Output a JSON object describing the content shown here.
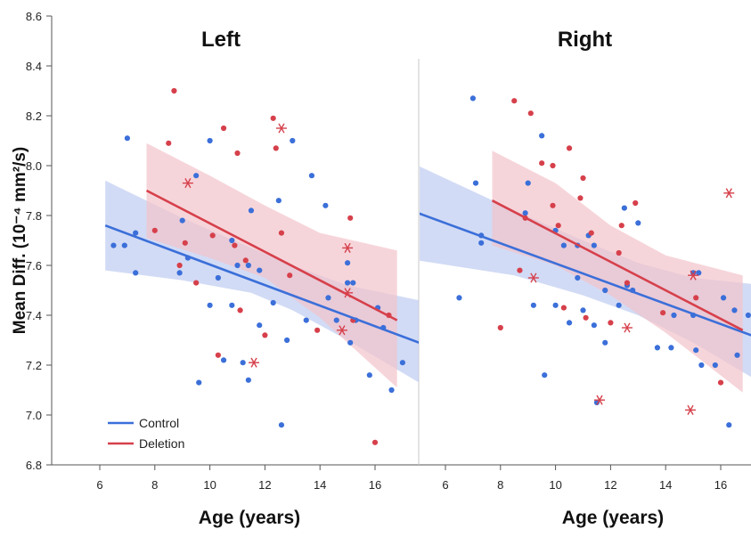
{
  "chart_data": {
    "type": "scatter",
    "ylabel": "Mean Diff. (10⁻⁴ mm²/s)",
    "y_tick_labels": [
      "6.8",
      "7.0",
      "7.2",
      "7.4",
      "7.6",
      "7.8",
      "8.0",
      "8.2",
      "8.4",
      "8.6"
    ],
    "ylim": [
      6.8,
      8.6
    ],
    "x_tick_labels": [
      "6",
      "8",
      "10",
      "12",
      "14",
      "16"
    ],
    "legend": {
      "position": "bottom-left",
      "entries": [
        {
          "label": "Control",
          "color": "#3b6fd9"
        },
        {
          "label": "Deletion",
          "color": "#d6404b"
        }
      ]
    },
    "colors": {
      "control": "#3b6fd9",
      "deletion": "#d6404b",
      "control_band": "#c3cff2",
      "deletion_band": "#f2c3ca"
    },
    "grid": false,
    "panels": [
      {
        "title": "Left",
        "xlabel": "Age (years)",
        "xlim": [
          5,
          17.6
        ],
        "series": [
          {
            "name": "Control",
            "marker": "dot",
            "fit": {
              "x_start": 6.2,
              "y_start": 7.76,
              "x_end": 17.6,
              "y_end": 7.29
            },
            "band": {
              "upper": [
                [
                  6.2,
                  7.94
                ],
                [
                  9,
                  7.79
                ],
                [
                  11.5,
                  7.67
                ],
                [
                  13,
                  7.6
                ],
                [
                  15,
                  7.52
                ],
                [
                  17.6,
                  7.46
                ]
              ],
              "lower": [
                [
                  6.2,
                  7.58
                ],
                [
                  9,
                  7.54
                ],
                [
                  11.5,
                  7.49
                ],
                [
                  13,
                  7.42
                ],
                [
                  15,
                  7.3
                ],
                [
                  17.6,
                  7.13
                ]
              ]
            },
            "points": [
              [
                6.5,
                7.68
              ],
              [
                6.9,
                7.68
              ],
              [
                7.0,
                8.11
              ],
              [
                7.3,
                7.73
              ],
              [
                7.3,
                7.57
              ],
              [
                8.9,
                7.57
              ],
              [
                9.0,
                7.78
              ],
              [
                9.2,
                7.63
              ],
              [
                9.5,
                7.96
              ],
              [
                9.6,
                7.13
              ],
              [
                10.0,
                8.1
              ],
              [
                10.0,
                7.44
              ],
              [
                10.3,
                7.55
              ],
              [
                10.5,
                7.22
              ],
              [
                10.8,
                7.7
              ],
              [
                10.8,
                7.44
              ],
              [
                11.0,
                7.6
              ],
              [
                11.2,
                7.21
              ],
              [
                11.4,
                7.6
              ],
              [
                11.4,
                7.14
              ],
              [
                11.5,
                7.82
              ],
              [
                11.8,
                7.58
              ],
              [
                11.8,
                7.36
              ],
              [
                12.3,
                7.45
              ],
              [
                12.5,
                7.86
              ],
              [
                12.6,
                6.96
              ],
              [
                12.8,
                7.3
              ],
              [
                13.0,
                8.1
              ],
              [
                13.5,
                7.38
              ],
              [
                13.7,
                7.96
              ],
              [
                14.2,
                7.84
              ],
              [
                14.3,
                7.47
              ],
              [
                14.6,
                7.38
              ],
              [
                15.0,
                7.61
              ],
              [
                15.0,
                7.53
              ],
              [
                15.1,
                7.29
              ],
              [
                15.2,
                7.53
              ],
              [
                15.3,
                7.38
              ],
              [
                15.8,
                7.16
              ],
              [
                16.1,
                7.43
              ],
              [
                16.3,
                7.35
              ],
              [
                16.6,
                7.1
              ],
              [
                17.0,
                7.21
              ]
            ]
          },
          {
            "name": "Deletion",
            "marker": "dot-and-asterisk",
            "fit": {
              "x_start": 7.7,
              "y_start": 7.9,
              "x_end": 16.8,
              "y_end": 7.38
            },
            "band": {
              "upper": [
                [
                  7.7,
                  8.09
                ],
                [
                  10,
                  7.96
                ],
                [
                  12,
                  7.84
                ],
                [
                  14,
                  7.73
                ],
                [
                  16.8,
                  7.66
                ]
              ],
              "lower": [
                [
                  7.7,
                  7.71
                ],
                [
                  10,
                  7.63
                ],
                [
                  12,
                  7.55
                ],
                [
                  14,
                  7.39
                ],
                [
                  16.8,
                  7.11
                ]
              ]
            },
            "points": [
              [
                8.0,
                7.74
              ],
              [
                8.5,
                8.09
              ],
              [
                8.7,
                8.3
              ],
              [
                8.9,
                7.6
              ],
              [
                9.1,
                7.69
              ],
              [
                9.5,
                7.53
              ],
              [
                10.1,
                7.72
              ],
              [
                10.3,
                7.24
              ],
              [
                10.5,
                8.15
              ],
              [
                10.9,
                7.68
              ],
              [
                11.0,
                8.05
              ],
              [
                11.1,
                7.42
              ],
              [
                11.3,
                7.62
              ],
              [
                12.0,
                7.32
              ],
              [
                12.3,
                8.19
              ],
              [
                12.4,
                8.07
              ],
              [
                12.6,
                7.73
              ],
              [
                12.9,
                7.56
              ],
              [
                13.9,
                7.34
              ],
              [
                15.1,
                7.79
              ],
              [
                15.2,
                7.38
              ],
              [
                16.0,
                6.89
              ],
              [
                16.5,
                7.4
              ]
            ],
            "asterisks": [
              [
                9.2,
                7.93
              ],
              [
                11.6,
                7.21
              ],
              [
                12.6,
                8.15
              ],
              [
                15.0,
                7.67
              ],
              [
                15.0,
                7.49
              ],
              [
                14.8,
                7.34
              ]
            ]
          }
        ]
      },
      {
        "title": "Right",
        "xlabel": "Age (years)",
        "xlim": [
          5,
          17.6
        ],
        "series": [
          {
            "name": "Control",
            "marker": "dot",
            "fit": {
              "x_start": 5.0,
              "y_start": 7.81,
              "x_end": 17.6,
              "y_end": 7.3
            },
            "band": {
              "upper": [
                [
                  5.0,
                  8.0
                ],
                [
                  8.5,
                  7.82
                ],
                [
                  11,
                  7.7
                ],
                [
                  13,
                  7.61
                ],
                [
                  15,
                  7.55
                ],
                [
                  17.6,
                  7.52
                ]
              ],
              "lower": [
                [
                  5.0,
                  7.62
                ],
                [
                  8.5,
                  7.56
                ],
                [
                  11,
                  7.48
                ],
                [
                  13,
                  7.4
                ],
                [
                  15,
                  7.29
                ],
                [
                  17.6,
                  7.12
                ]
              ]
            },
            "points": [
              [
                6.5,
                7.47
              ],
              [
                7.0,
                8.27
              ],
              [
                7.1,
                7.93
              ],
              [
                7.3,
                7.69
              ],
              [
                7.3,
                7.72
              ],
              [
                8.9,
                7.81
              ],
              [
                9.0,
                7.93
              ],
              [
                9.2,
                7.44
              ],
              [
                9.5,
                8.12
              ],
              [
                9.6,
                7.16
              ],
              [
                10.0,
                7.44
              ],
              [
                10.0,
                7.74
              ],
              [
                10.3,
                7.68
              ],
              [
                10.5,
                7.37
              ],
              [
                10.8,
                7.55
              ],
              [
                10.8,
                7.68
              ],
              [
                11.0,
                7.42
              ],
              [
                11.2,
                7.72
              ],
              [
                11.4,
                7.68
              ],
              [
                11.4,
                7.36
              ],
              [
                11.5,
                7.05
              ],
              [
                11.8,
                7.5
              ],
              [
                11.8,
                7.29
              ],
              [
                12.3,
                7.44
              ],
              [
                12.5,
                7.83
              ],
              [
                12.6,
                7.52
              ],
              [
                12.8,
                7.5
              ],
              [
                13.0,
                7.77
              ],
              [
                13.7,
                7.27
              ],
              [
                14.2,
                7.27
              ],
              [
                14.3,
                7.4
              ],
              [
                15.0,
                7.57
              ],
              [
                15.0,
                7.4
              ],
              [
                15.1,
                7.26
              ],
              [
                15.2,
                7.57
              ],
              [
                15.3,
                7.2
              ],
              [
                15.8,
                7.2
              ],
              [
                16.1,
                7.47
              ],
              [
                16.3,
                6.96
              ],
              [
                16.5,
                7.42
              ],
              [
                16.6,
                7.24
              ],
              [
                17.0,
                7.4
              ],
              [
                17.3,
                7.52
              ]
            ]
          },
          {
            "name": "Deletion",
            "marker": "dot-and-asterisk",
            "fit": {
              "x_start": 7.7,
              "y_start": 7.86,
              "x_end": 16.8,
              "y_end": 7.34
            },
            "band": {
              "upper": [
                [
                  7.7,
                  8.06
                ],
                [
                  10,
                  7.93
                ],
                [
                  12,
                  7.76
                ],
                [
                  14,
                  7.64
                ],
                [
                  16.8,
                  7.56
                ]
              ],
              "lower": [
                [
                  7.7,
                  7.68
                ],
                [
                  10,
                  7.6
                ],
                [
                  12,
                  7.48
                ],
                [
                  14,
                  7.33
                ],
                [
                  16.8,
                  7.09
                ]
              ]
            },
            "points": [
              [
                8.0,
                7.35
              ],
              [
                8.5,
                8.26
              ],
              [
                8.7,
                7.58
              ],
              [
                8.9,
                7.79
              ],
              [
                9.1,
                8.21
              ],
              [
                9.5,
                8.01
              ],
              [
                9.9,
                8.0
              ],
              [
                9.9,
                7.84
              ],
              [
                10.1,
                7.76
              ],
              [
                10.3,
                7.43
              ],
              [
                10.5,
                8.07
              ],
              [
                10.9,
                7.87
              ],
              [
                11.0,
                7.95
              ],
              [
                11.1,
                7.39
              ],
              [
                11.3,
                7.73
              ],
              [
                12.0,
                7.37
              ],
              [
                12.3,
                7.65
              ],
              [
                12.4,
                7.76
              ],
              [
                12.6,
                7.53
              ],
              [
                12.9,
                7.85
              ],
              [
                13.9,
                7.41
              ],
              [
                15.1,
                7.47
              ],
              [
                16.0,
                7.13
              ]
            ],
            "asterisks": [
              [
                9.2,
                7.55
              ],
              [
                11.6,
                7.06
              ],
              [
                12.6,
                7.35
              ],
              [
                15.0,
                7.56
              ],
              [
                14.9,
                7.02
              ],
              [
                16.3,
                7.89
              ]
            ]
          }
        ]
      }
    ]
  }
}
